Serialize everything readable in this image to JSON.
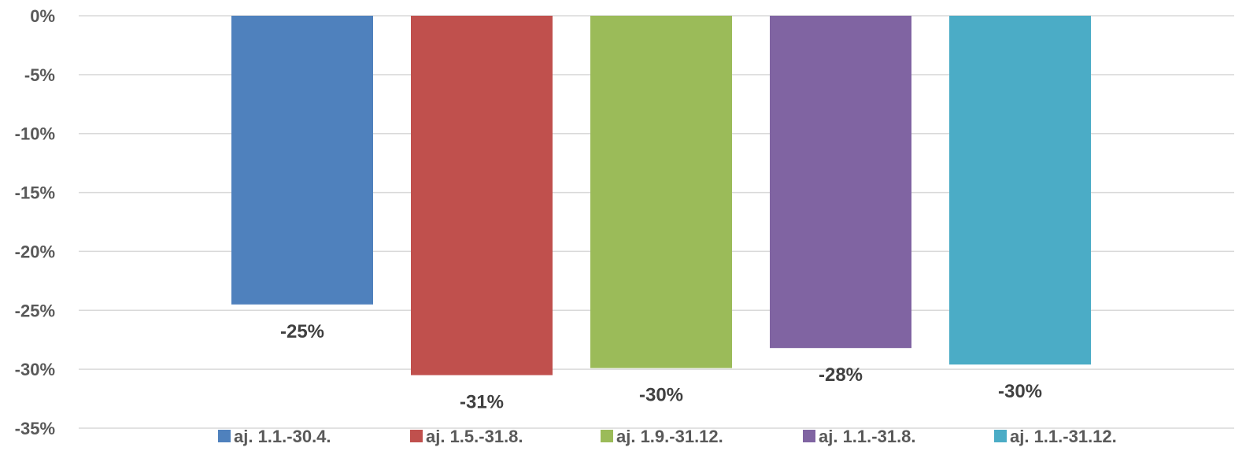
{
  "chart_data": {
    "type": "bar",
    "title": "",
    "xlabel": "",
    "ylabel": "",
    "ylim": [
      -35,
      0
    ],
    "yticks": [
      "0%",
      "-5%",
      "-10%",
      "-15%",
      "-20%",
      "-25%",
      "-30%",
      "-35%"
    ],
    "grid": true,
    "legend_position": "bottom",
    "series": [
      {
        "name": "aj. 1.1.-30.4.",
        "value": -24.5,
        "label": "-25%",
        "color": "#4F81BD"
      },
      {
        "name": "aj. 1.5.-31.8.",
        "value": -30.5,
        "label": "-31%",
        "color": "#C0504D"
      },
      {
        "name": "aj. 1.9.-31.12.",
        "value": -29.9,
        "label": "-30%",
        "color": "#9BBB59"
      },
      {
        "name": "aj. 1.1.-31.8.",
        "value": -28.2,
        "label": "-28%",
        "color": "#8064A2"
      },
      {
        "name": "aj. 1.1.-31.12.",
        "value": -29.6,
        "label": "-30%",
        "color": "#4BACC6"
      }
    ]
  }
}
